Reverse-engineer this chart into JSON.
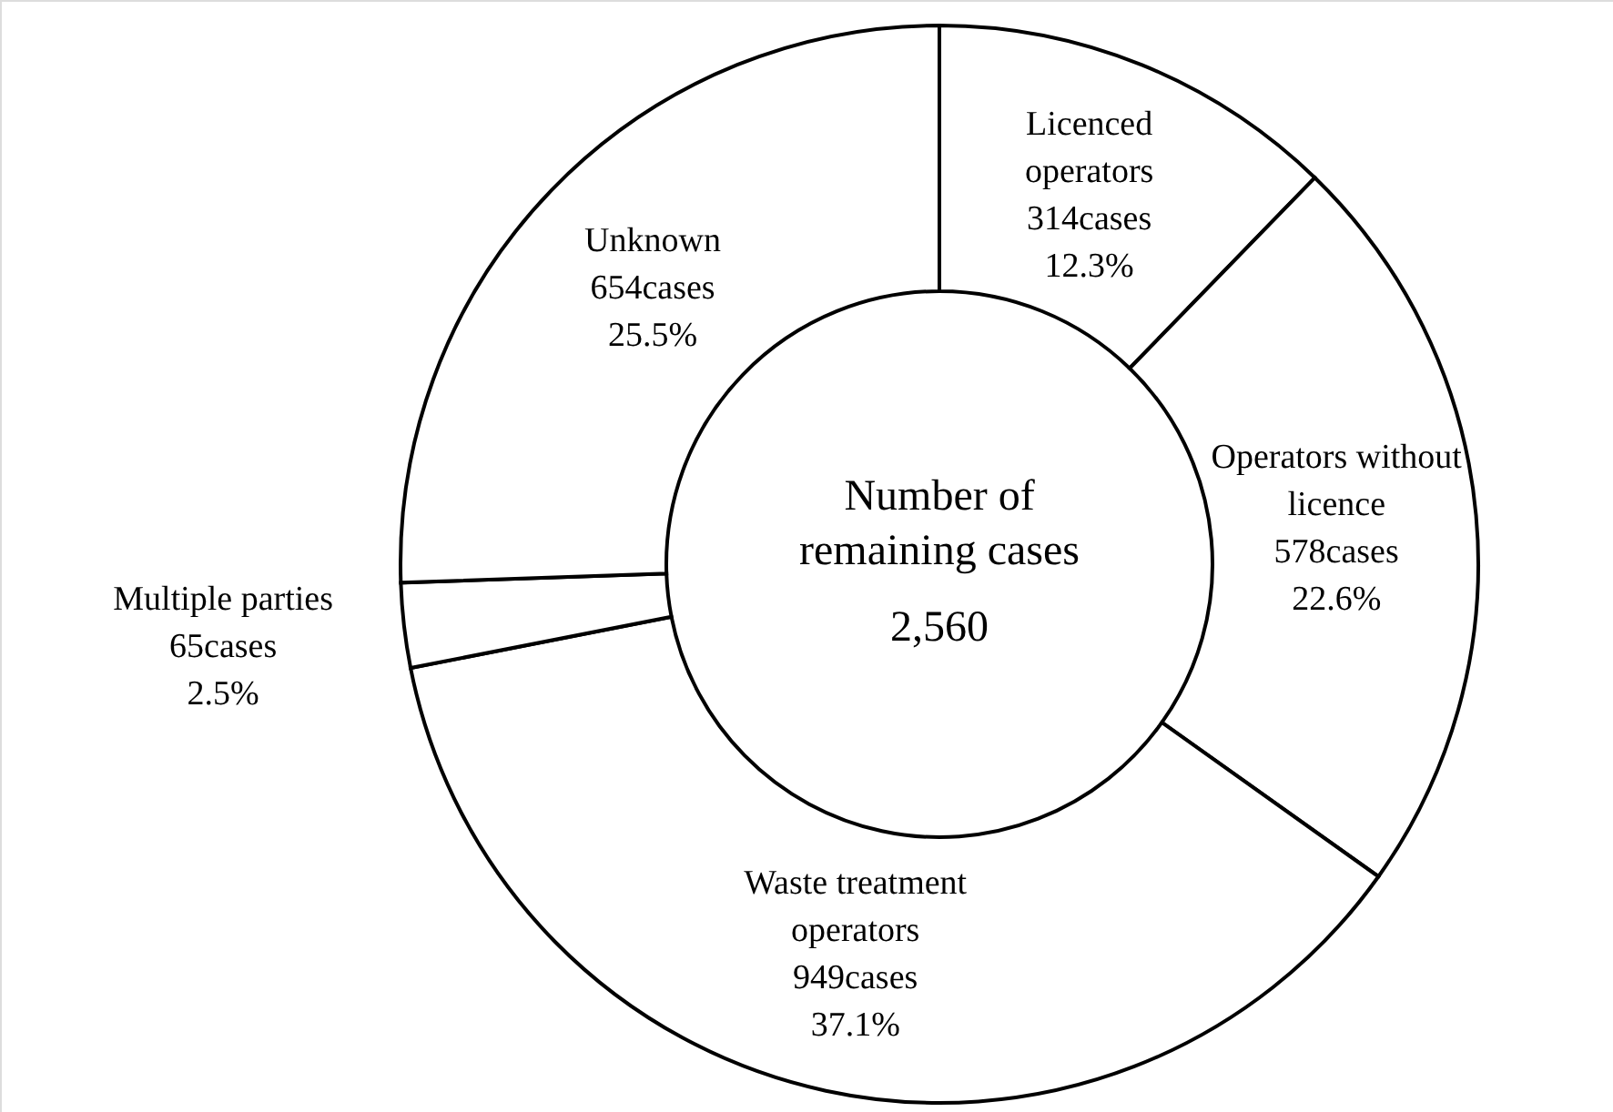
{
  "chart_data": {
    "type": "donut",
    "categories": [
      "Licenced operators",
      "Operators without licence",
      "Waste treatment operators",
      "Multiple parties",
      "Unknown"
    ],
    "values": [
      314,
      578,
      949,
      65,
      654
    ],
    "value_labels": [
      "314cases\n12.3%",
      "578cases\n22.6%",
      "949cases\n37.1%",
      "65cases\n2.5%",
      "654cases\n25.5%"
    ],
    "colors": [
      "#ffffff",
      "#ffffff",
      "#ffffff",
      "#ffffff",
      "#ffffff"
    ],
    "annotations": [
      "Number of\nremaining cases",
      "2,560"
    ]
  }
}
